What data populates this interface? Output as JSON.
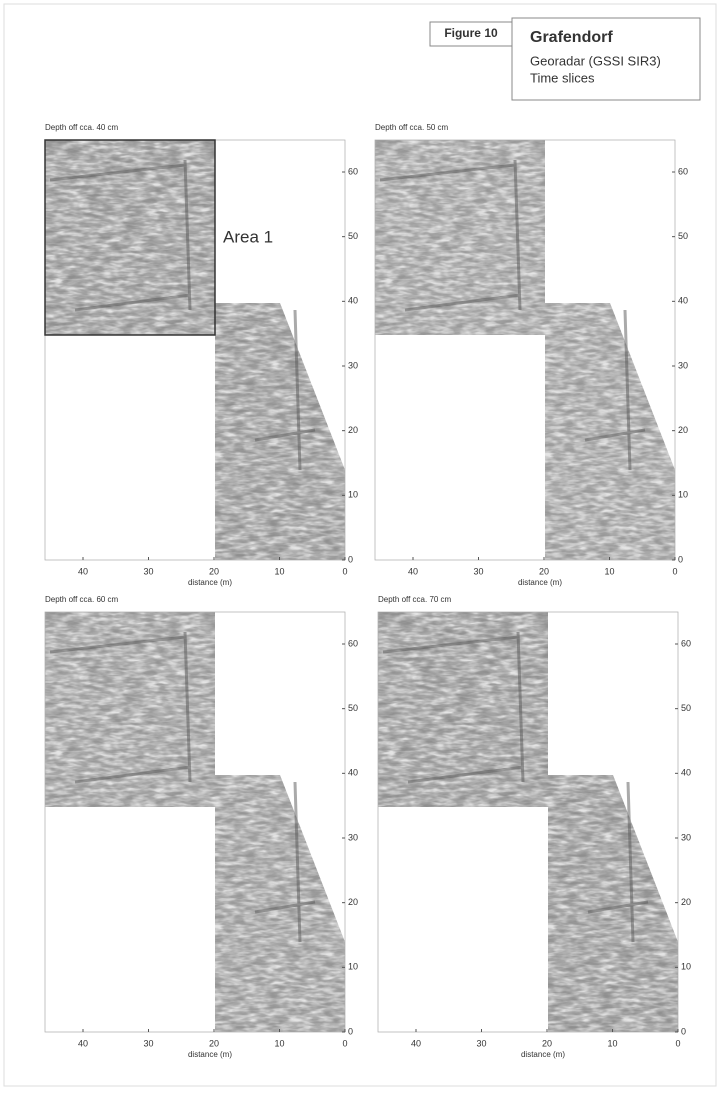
{
  "figure_label": "Figure 10",
  "header": {
    "title": "Grafendorf",
    "lines": [
      "Georadar (GSSI SIR3)",
      "Time slices"
    ]
  },
  "panels": [
    {
      "title": "Depth off cca. 40 cm",
      "x_label": "distance (m)",
      "xticks": [
        "40",
        "30",
        "20",
        "10",
        "0"
      ],
      "yticks": [
        "0",
        "10",
        "20",
        "30",
        "40",
        "50",
        "60"
      ],
      "annotation": "Area 1"
    },
    {
      "title": "Depth off cca. 50 cm",
      "x_label": "distance (m)",
      "xticks": [
        "40",
        "30",
        "20",
        "10",
        "0"
      ],
      "yticks": [
        "0",
        "10",
        "20",
        "30",
        "40",
        "50",
        "60"
      ]
    },
    {
      "title": "Depth off cca. 60 cm",
      "x_label": "distance (m)",
      "xticks": [
        "40",
        "30",
        "20",
        "10",
        "0"
      ],
      "yticks": [
        "0",
        "10",
        "20",
        "30",
        "40",
        "50",
        "60"
      ]
    },
    {
      "title": "Depth off cca. 70 cm",
      "x_label": "distance (m)",
      "xticks": [
        "40",
        "30",
        "20",
        "10",
        "0"
      ],
      "yticks": [
        "0",
        "10",
        "20",
        "30",
        "40",
        "50",
        "60"
      ]
    }
  ]
}
